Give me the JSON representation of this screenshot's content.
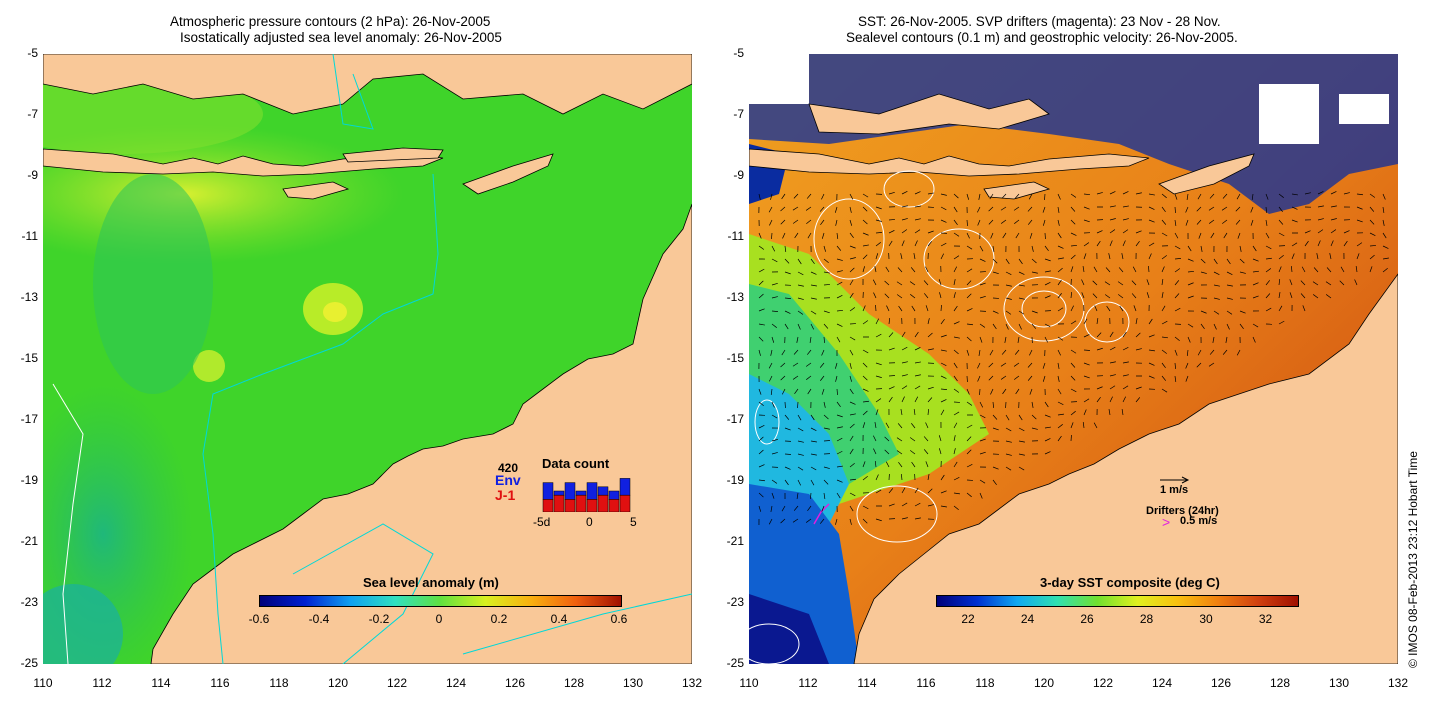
{
  "left_panel": {
    "title_line1": "Atmospheric pressure contours (2 hPa): 26-Nov-2005",
    "title_line2": "Isostatically adjusted sea level anomaly: 26-Nov-2005",
    "colorbar_title": "Sea level anomaly (m)",
    "colorbar_ticks": [
      "-0.6",
      "-0.4",
      "-0.2",
      "0",
      "0.2",
      "0.4",
      "0.6"
    ],
    "data_count": {
      "title": "Data count",
      "count": "420",
      "env_label": "Env",
      "j1_label": "J-1",
      "axis_labels": [
        "-5d",
        "0",
        "5"
      ],
      "env_values": [
        7,
        5,
        7,
        5,
        7,
        6,
        5,
        8
      ],
      "j1_values": [
        3,
        4,
        3,
        4,
        3,
        4,
        3,
        4
      ],
      "colors": {
        "env": "#1020e0",
        "j1": "#e01010"
      }
    }
  },
  "right_panel": {
    "title_line1": "SST: 26-Nov-2005. SVP drifters (magenta): 23 Nov - 28 Nov.",
    "title_line2": "Sealevel contours (0.1 m) and geostrophic velocity: 26-Nov-2005.",
    "colorbar_title": "3-day SST composite (deg C)",
    "colorbar_ticks": [
      "22",
      "24",
      "26",
      "28",
      "30",
      "32"
    ],
    "velocity_scale_label": "1 m/s",
    "drifters_label": "Drifters (24hr)",
    "drifter_speed_label": "0.5 m/s",
    "drifter_symbol": ">"
  },
  "axes": {
    "lat_ticks": [
      "-5",
      "-7",
      "-9",
      "-11",
      "-13",
      "-15",
      "-17",
      "-19",
      "-21",
      "-23",
      "-25"
    ],
    "lon_ticks": [
      "110",
      "112",
      "114",
      "116",
      "118",
      "120",
      "122",
      "124",
      "126",
      "128",
      "130",
      "132"
    ]
  },
  "credit": "© IMOS 08-Feb-2013 23:12 Hobart Time",
  "colors": {
    "land": "#f9c898",
    "sla_ocean": "#3fd42a",
    "coast": "#000000",
    "sst_warm": "#e8801a"
  }
}
